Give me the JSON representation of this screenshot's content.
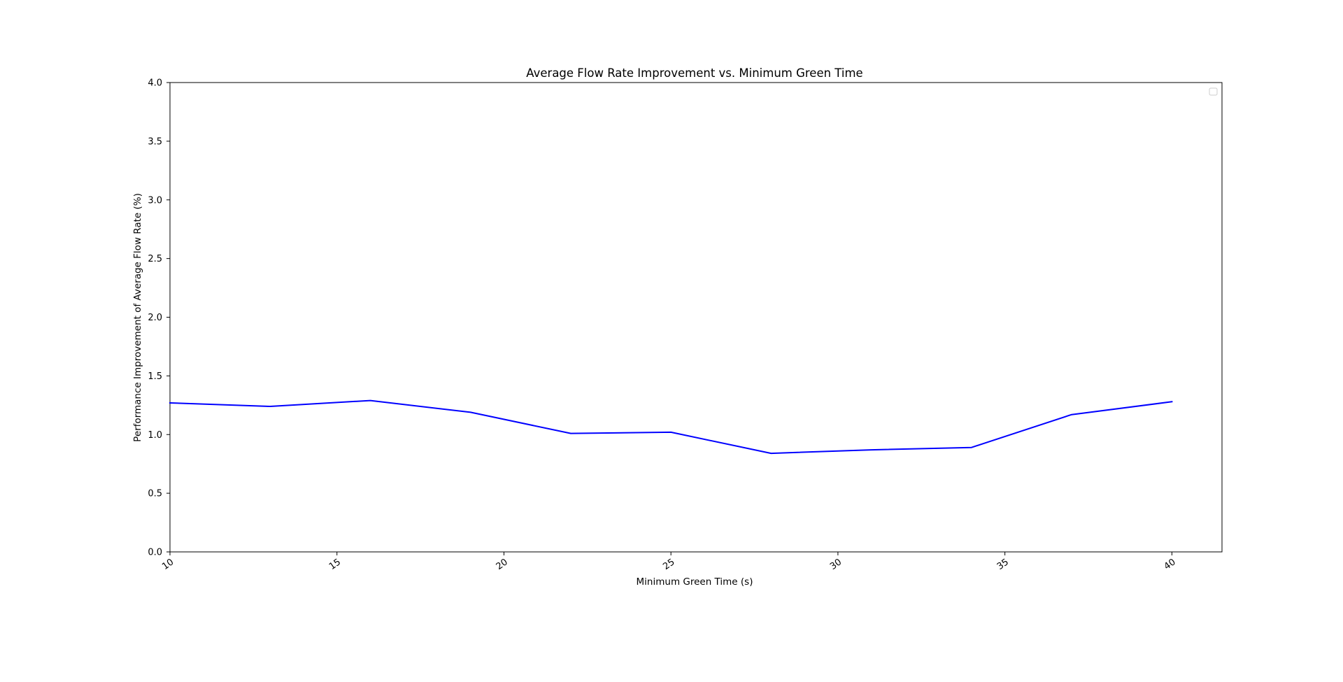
{
  "chart_data": {
    "type": "line",
    "title": "Average Flow Rate Improvement vs. Minimum Green Time",
    "xlabel": "Minimum Green Time (s)",
    "ylabel": "Performance Improvement of Average Flow Rate (%)",
    "xlim": [
      10,
      41.5
    ],
    "ylim": [
      0.0,
      4.0
    ],
    "xticks": [
      10,
      15,
      20,
      25,
      30,
      35,
      40
    ],
    "yticks": [
      0.0,
      0.5,
      1.0,
      1.5,
      2.0,
      2.5,
      3.0,
      3.5,
      4.0
    ],
    "xtick_labels": [
      "10",
      "15",
      "20",
      "25",
      "30",
      "35",
      "40"
    ],
    "ytick_labels": [
      "0.0",
      "0.5",
      "1.0",
      "1.5",
      "2.0",
      "2.5",
      "3.0",
      "3.5",
      "4.0"
    ],
    "grid": false,
    "legend": "upper right (empty)",
    "series": [
      {
        "color": "#0000ff",
        "x": [
          10,
          13,
          16,
          19,
          22,
          25,
          28,
          31,
          34,
          37,
          40
        ],
        "values": [
          1.27,
          1.24,
          1.29,
          1.19,
          1.01,
          1.02,
          0.84,
          0.87,
          0.89,
          1.17,
          1.28
        ]
      }
    ]
  }
}
